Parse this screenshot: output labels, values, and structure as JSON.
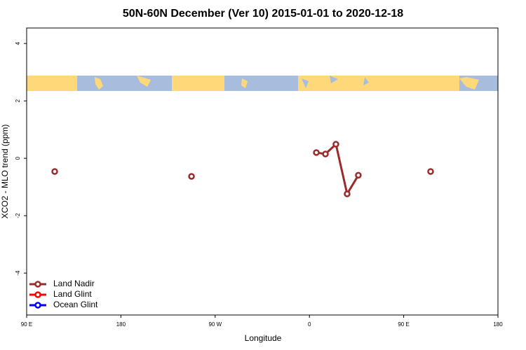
{
  "chart_data": {
    "type": "line",
    "title": "50N-60N December (Ver 10)   2015-01-01 to 2020-12-18",
    "xlabel": "Longitude",
    "ylabel": "XCO2 - MLO trend (ppm)",
    "xlim": [
      -270,
      180
    ],
    "xticks": [
      {
        "value": -270,
        "label": "90 E"
      },
      {
        "value": -180,
        "label": "180"
      },
      {
        "value": -90,
        "label": "90 W"
      },
      0,
      {
        "value": 90,
        "label": "90 E"
      },
      180
    ],
    "ylim": [
      -5.46,
      4.54
    ],
    "yticks": [
      -4,
      -2,
      0,
      2,
      4
    ],
    "legend": "bottom-left",
    "series": [
      {
        "name": "Land Nadir",
        "color": "#9b2b2b",
        "x": [
          -243.2,
          null,
          -112.6,
          null,
          6.6,
          15.3,
          25.3,
          36.0,
          46.7,
          null,
          115.7
        ],
        "values": [
          -0.46,
          null,
          -0.63,
          null,
          0.2,
          0.15,
          0.49,
          -1.24,
          -0.59,
          null,
          -0.46
        ]
      },
      {
        "name": "Land Glint",
        "color": "#ff0000",
        "x": [],
        "values": []
      },
      {
        "name": "Ocean Glint",
        "color": "#0000ff",
        "x": [],
        "values": []
      }
    ]
  }
}
